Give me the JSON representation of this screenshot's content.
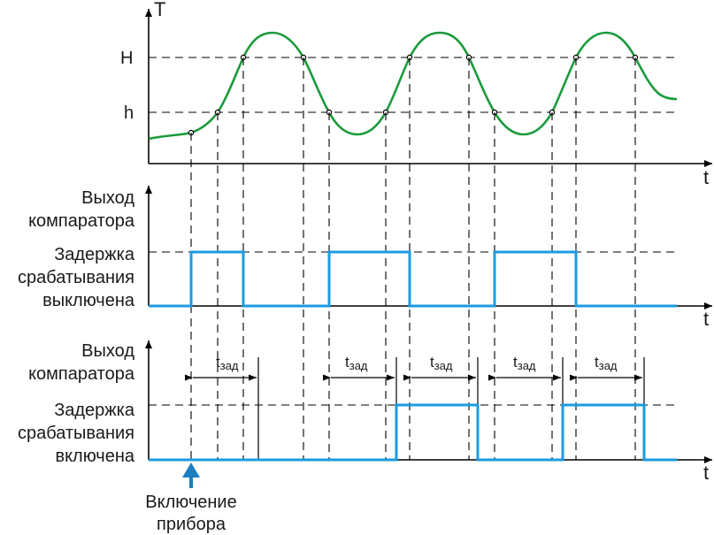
{
  "panel_top": {
    "y_axis_label": "T",
    "x_axis_label": "t",
    "level_high": "H",
    "level_low": "h"
  },
  "panel_mid": {
    "label_line1": "Выход",
    "label_line2": "компаратора",
    "label_line3": "Задержка",
    "label_line4": "срабатывания",
    "label_line5": "выключена",
    "x_axis_label": "t"
  },
  "panel_bottom": {
    "label_line1": "Выход",
    "label_line2": "компаратора",
    "label_line3": "Задержка",
    "label_line4": "срабатывания",
    "label_line5": "включена",
    "x_axis_label": "t",
    "delay_base": "t",
    "delay_sub": "зад"
  },
  "power_on": {
    "line1": "Включение",
    "line2": "прибора"
  },
  "colors": {
    "temperature_curve": "#1a9a3c",
    "comparator_signal": "#1c9be0",
    "power_on_arrow": "#1c7fc0"
  }
}
